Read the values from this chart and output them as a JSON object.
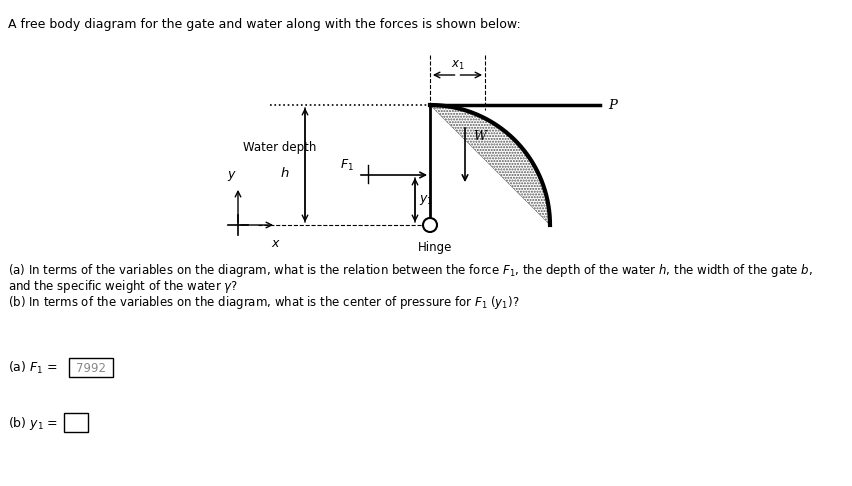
{
  "title": "A free body diagram for the gate and water along with the forces is shown below:",
  "background_color": "#ffffff",
  "fig_width": 8.53,
  "fig_height": 4.86,
  "dpi": 100,
  "q1": "(a) In terms of the variables on the diagram, what is the relation between the force $F_1$, the depth of the water $h$, the width of the gate $b$,",
  "q2": "and the specific weight of the water $\\gamma$?",
  "q3": "(b) In terms of the variables on the diagram, what is the center of pressure for $F_1$ $(y_1)$?",
  "ans_a_text": "(a) $F_1$ =",
  "ans_a_val": "7992",
  "ans_b_text": "(b) $y_1$ ="
}
